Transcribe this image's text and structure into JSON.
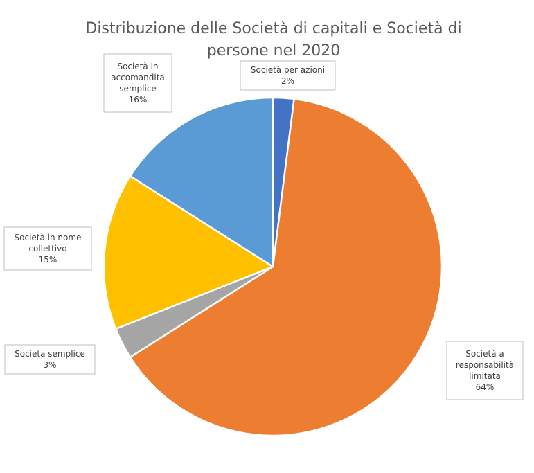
{
  "chart_data": {
    "type": "pie",
    "title_lines": [
      "Distribuzione delle Società di capitali e Società di",
      "persone nel 2020"
    ],
    "slices": [
      {
        "label_lines": [
          "Società per azioni"
        ],
        "value": 2,
        "value_label": "2%",
        "color": "#4472c4"
      },
      {
        "label_lines": [
          "Società a",
          "responsabilità",
          "limitata"
        ],
        "value": 64,
        "value_label": "64%",
        "color": "#ed7d31"
      },
      {
        "label_lines": [
          "Societa semplice"
        ],
        "value": 3,
        "value_label": "3%",
        "color": "#a5a5a5"
      },
      {
        "label_lines": [
          "Società in nome",
          "collettivo"
        ],
        "value": 15,
        "value_label": "15%",
        "color": "#ffc000"
      },
      {
        "label_lines": [
          "Società in",
          "accomandita",
          "semplice"
        ],
        "value": 16,
        "value_label": "16%",
        "color": "#5b9bd5"
      }
    ]
  }
}
